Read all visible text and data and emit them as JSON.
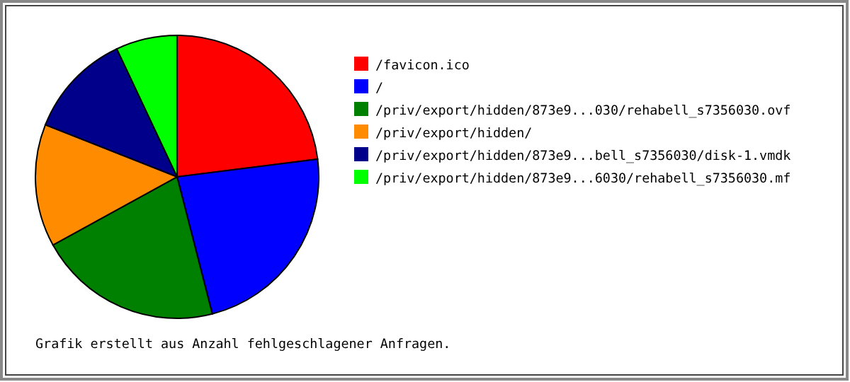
{
  "chart_data": {
    "type": "pie",
    "categories": [
      "/favicon.ico",
      "/",
      "/priv/export/hidden/873e9...030/rehabell_s7356030.ovf",
      "/priv/export/hidden/",
      "/priv/export/hidden/873e9...bell_s7356030/disk-1.vmdk",
      "/priv/export/hidden/873e9...6030/rehabell_s7356030.mf"
    ],
    "values": [
      23,
      23,
      21,
      14,
      12,
      7
    ],
    "colors": [
      "#ff0000",
      "#0000ff",
      "#008000",
      "#ff8c00",
      "#00008b",
      "#00ff00"
    ],
    "legend": "right",
    "annotations": [
      "Grafik erstellt aus Anzahl fehlgeschlagener Anfragen."
    ]
  }
}
